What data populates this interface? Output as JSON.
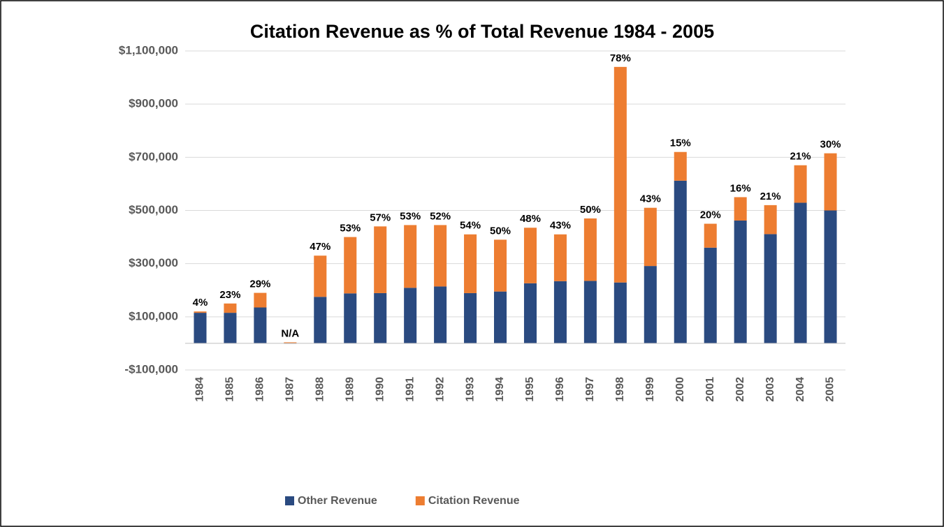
{
  "chart_data": {
    "type": "bar",
    "stacked": true,
    "title": "Citation Revenue as % of Total Revenue 1984 - 2005",
    "categories": [
      "1984",
      "1985",
      "1986",
      "1987",
      "1988",
      "1989",
      "1990",
      "1991",
      "1992",
      "1993",
      "1994",
      "1995",
      "1996",
      "1997",
      "1998",
      "1999",
      "2000",
      "2001",
      "2002",
      "2003",
      "2004",
      "2005"
    ],
    "series": [
      {
        "name": "Other Revenue",
        "color": "#2a4a80",
        "values": [
          115000,
          115000,
          135000,
          0,
          175000,
          188000,
          189000,
          209000,
          214000,
          189000,
          195000,
          226000,
          234000,
          235000,
          229000,
          291000,
          612000,
          360000,
          462000,
          411000,
          529000,
          500000
        ]
      },
      {
        "name": "Citation Revenue",
        "color": "#ed7d31",
        "values": [
          5000,
          35000,
          55000,
          4000,
          155000,
          212000,
          251000,
          236000,
          231000,
          221000,
          195000,
          209000,
          176000,
          235000,
          811000,
          219000,
          108000,
          90000,
          88000,
          109000,
          141000,
          215000
        ]
      }
    ],
    "percent_labels": [
      "4%",
      "23%",
      "29%",
      "N/A",
      "47%",
      "53%",
      "57%",
      "53%",
      "52%",
      "54%",
      "50%",
      "48%",
      "43%",
      "50%",
      "78%",
      "43%",
      "15%",
      "20%",
      "16%",
      "21%",
      "21%",
      "30%"
    ],
    "ylim": [
      -100000,
      1100000
    ],
    "yticks": [
      {
        "value": -100000,
        "label": "-$100,000"
      },
      {
        "value": 100000,
        "label": "$100,000"
      },
      {
        "value": 300000,
        "label": "$300,000"
      },
      {
        "value": 500000,
        "label": "$500,000"
      },
      {
        "value": 700000,
        "label": "$700,000"
      },
      {
        "value": 900000,
        "label": "$900,000"
      },
      {
        "value": 1100000,
        "label": "$1,100,000"
      }
    ],
    "grid": true,
    "legend": "bottom"
  }
}
